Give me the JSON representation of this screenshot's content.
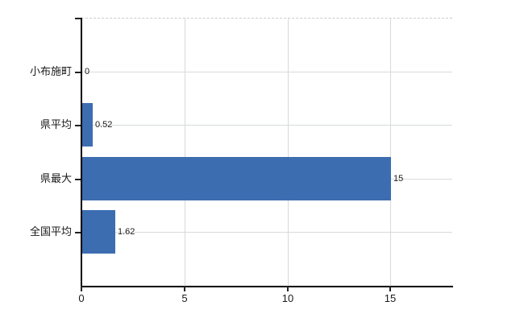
{
  "chart_data": {
    "type": "bar",
    "orientation": "horizontal",
    "title": "",
    "categories": [
      "小布施町",
      "県平均",
      "県最大",
      "全国平均"
    ],
    "values": [
      0,
      0.52,
      15,
      1.62
    ],
    "value_labels": [
      "0",
      "0.52",
      "15",
      "1.62"
    ],
    "x_tick_values": [
      0,
      5,
      10,
      15
    ],
    "x_tick_labels": [
      "0",
      "5",
      "10",
      "15"
    ],
    "xlim": [
      0,
      18
    ],
    "grid": true,
    "legend": false,
    "colors": {
      "bar": "#3d6db1",
      "vertical_grid": "#d9d9d9",
      "horizontal_grid": "#d6dcd6",
      "axis": "#000000",
      "top_border_dashed": "#cccccc",
      "text": "#1a1a1a",
      "background": "#ffffff"
    }
  }
}
